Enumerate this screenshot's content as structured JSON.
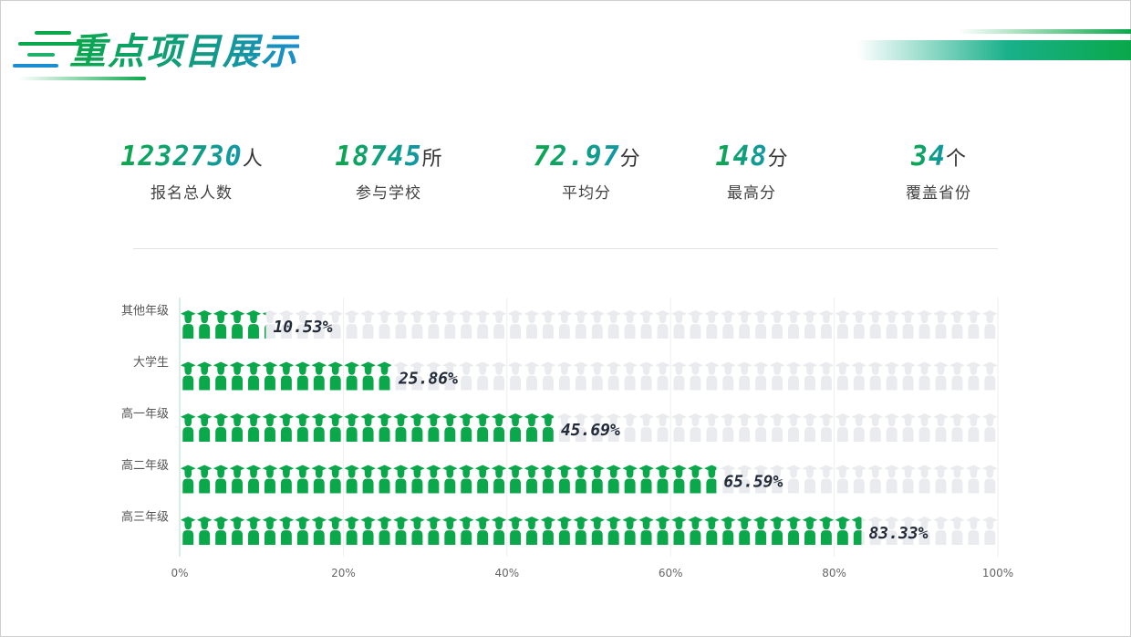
{
  "header": {
    "title": "重点项目展示"
  },
  "stats": [
    {
      "value": "1232730",
      "unit": "人",
      "label": "报名总人数"
    },
    {
      "value": "18745",
      "unit": "所",
      "label": "参与学校"
    },
    {
      "value": "72.97",
      "unit": "分",
      "label": "平均分"
    },
    {
      "value": "148",
      "unit": "分",
      "label": "最高分"
    },
    {
      "value": "34",
      "unit": "个",
      "label": "覆盖省份"
    }
  ],
  "colors": {
    "green": "#0aa84a",
    "blue": "#1a8ed0",
    "inactive": "#e9ebee",
    "text": "#232b3a"
  },
  "chart_data": {
    "type": "bar",
    "orientation": "horizontal",
    "style": "pictorial",
    "icon": "graduate-icon",
    "icons_per_row": 50,
    "categories": [
      "其他年级",
      "大学生",
      "高一年级",
      "高二年级",
      "高三年级"
    ],
    "values": [
      10.53,
      25.86,
      45.69,
      65.59,
      83.33
    ],
    "value_labels": [
      "10.53%",
      "25.86%",
      "45.69%",
      "65.59%",
      "83.33%"
    ],
    "xlim": [
      0,
      100
    ],
    "xticks": [
      "0%",
      "20%",
      "40%",
      "60%",
      "80%",
      "100%"
    ],
    "grid": true,
    "legend": "none"
  }
}
